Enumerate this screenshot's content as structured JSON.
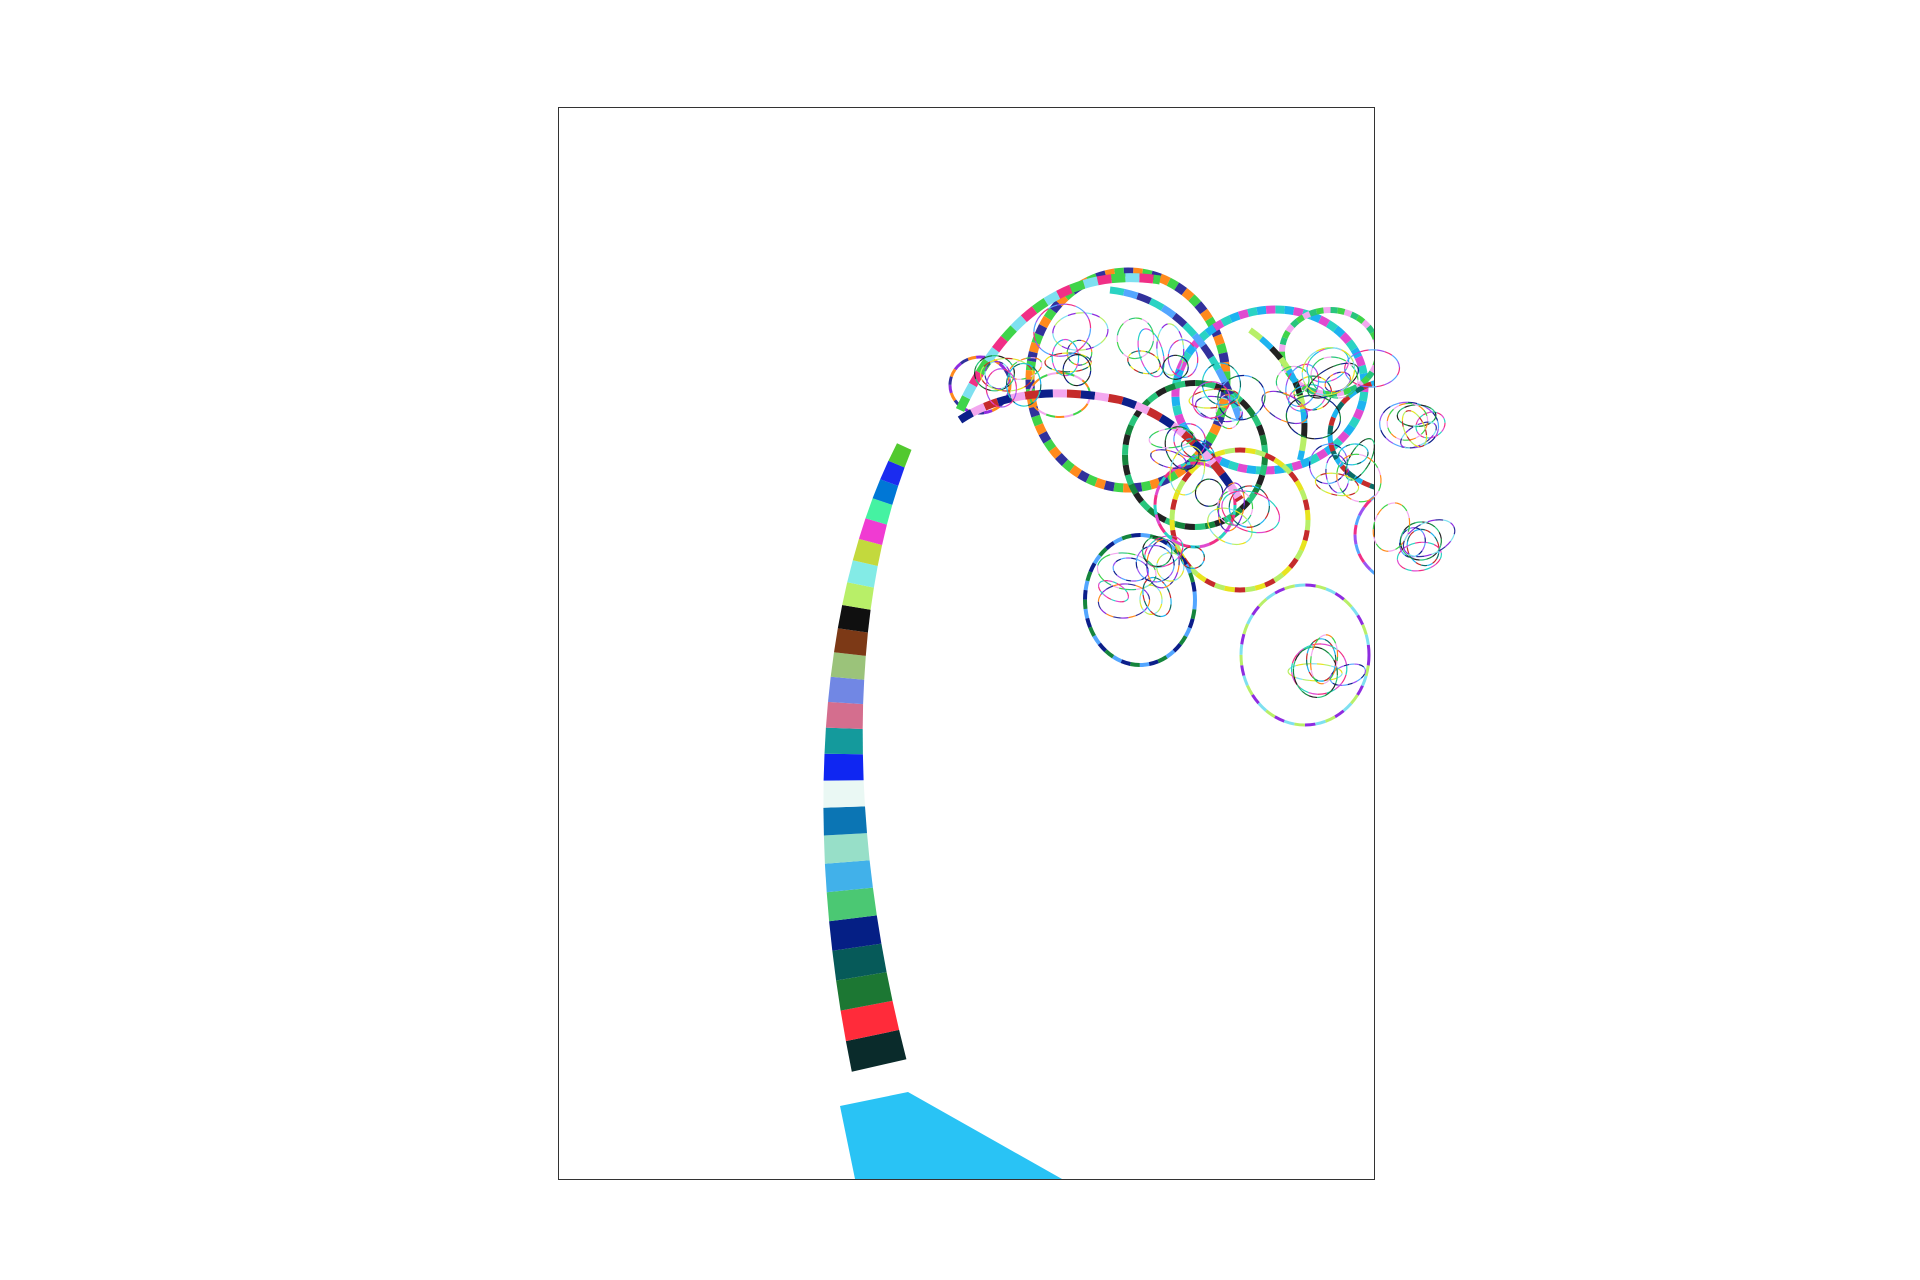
{
  "figure": {
    "frame_border_color": "#333333",
    "background_color": "#ffffff"
  },
  "colors": {
    "trunk_segments": [
      "#29c3f5",
      "#0a2b2b",
      "#ff2b3a",
      "#1c7733",
      "#065a59",
      "#051f85",
      "#4bc873",
      "#41b1ea",
      "#97dfc8",
      "#0b75b4",
      "#eaf8f4",
      "#0f26f2",
      "#149a9c",
      "#d46e8e",
      "#7187e4",
      "#9bc37a",
      "#7c3916",
      "#101010",
      "#b8ef68",
      "#83ebe6",
      "#c3d93d",
      "#f03bd2",
      "#45f2a2",
      "#0077d6",
      "#1b2cf0",
      "#52c92f"
    ],
    "branch_palette": [
      "#3fd44a",
      "#8e2ce0",
      "#e8e41f",
      "#1db3f0",
      "#f02f86",
      "#0c1f8a",
      "#28c57c",
      "#ff8a1d",
      "#7ee0f0",
      "#c52b2b",
      "#2ad3c3",
      "#9b54f2",
      "#15853d",
      "#f3a8ef",
      "#31319c",
      "#b8ef68",
      "#0a6c66",
      "#e04ad0",
      "#53a6ff",
      "#222222"
    ]
  }
}
